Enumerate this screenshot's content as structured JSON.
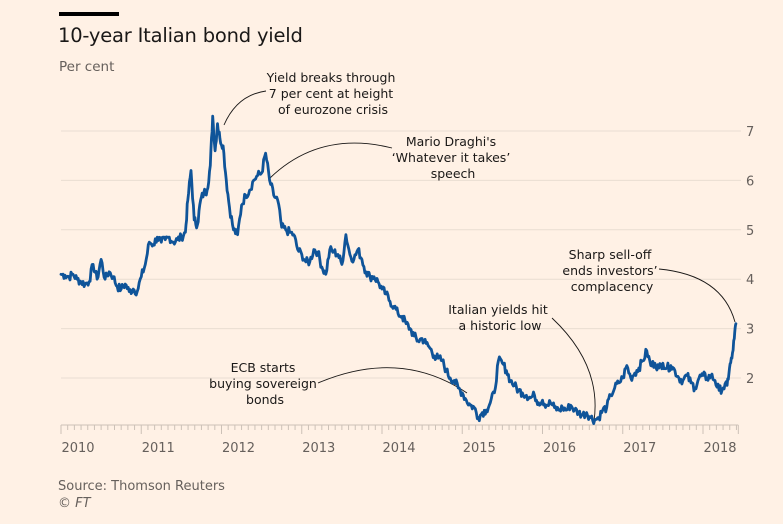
{
  "header": {
    "title": "10-year Italian bond yield",
    "subtitle": "Per cent"
  },
  "footer": {
    "source": "Source: Thomson Reuters",
    "copyright": "© FT"
  },
  "colors": {
    "background": "#fff1e5",
    "series": "#0f5499",
    "grid": "#e9ddd2",
    "text": "#66605c"
  },
  "chart_data": {
    "type": "line",
    "title": "10-year Italian bond yield",
    "subtitle": "Per cent",
    "xlabel": "",
    "ylabel": "Per cent",
    "xlim": [
      2009.95,
      2018.44
    ],
    "ylim": [
      1.05,
      7.9
    ],
    "grid": true,
    "y_axis_side": "right",
    "yticks": [
      2,
      3,
      4,
      5,
      6,
      7
    ],
    "xticks": [
      2010,
      2011,
      2012,
      2013,
      2014,
      2015,
      2016,
      2017,
      2018
    ],
    "xtick_labels": [
      "2010",
      "2011",
      "2012",
      "2013",
      "2014",
      "2015",
      "2016",
      "2017",
      "2018"
    ],
    "series": [
      {
        "name": "10-year Italian bond yield",
        "x": [
          2010.0,
          2010.05,
          2010.1,
          2010.15,
          2010.2,
          2010.25,
          2010.3,
          2010.35,
          2010.4,
          2010.45,
          2010.5,
          2010.55,
          2010.6,
          2010.65,
          2010.7,
          2010.75,
          2010.8,
          2010.85,
          2010.9,
          2010.95,
          2011.0,
          2011.05,
          2011.1,
          2011.15,
          2011.2,
          2011.25,
          2011.3,
          2011.35,
          2011.4,
          2011.45,
          2011.5,
          2011.55,
          2011.58,
          2011.62,
          2011.66,
          2011.7,
          2011.74,
          2011.78,
          2011.82,
          2011.86,
          2011.89,
          2011.92,
          2011.95,
          2011.98,
          2012.02,
          2012.06,
          2012.1,
          2012.15,
          2012.2,
          2012.25,
          2012.3,
          2012.35,
          2012.4,
          2012.45,
          2012.5,
          2012.55,
          2012.6,
          2012.65,
          2012.7,
          2012.75,
          2012.8,
          2012.85,
          2012.9,
          2012.95,
          2013.0,
          2013.05,
          2013.1,
          2013.15,
          2013.2,
          2013.25,
          2013.3,
          2013.35,
          2013.4,
          2013.45,
          2013.5,
          2013.55,
          2013.6,
          2013.65,
          2013.7,
          2013.75,
          2013.8,
          2013.85,
          2013.9,
          2013.95,
          2014.0,
          2014.05,
          2014.1,
          2014.15,
          2014.2,
          2014.25,
          2014.3,
          2014.35,
          2014.4,
          2014.45,
          2014.5,
          2014.55,
          2014.6,
          2014.65,
          2014.7,
          2014.75,
          2014.8,
          2014.85,
          2014.9,
          2014.95,
          2015.0,
          2015.05,
          2015.1,
          2015.15,
          2015.2,
          2015.25,
          2015.3,
          2015.35,
          2015.4,
          2015.45,
          2015.5,
          2015.55,
          2015.6,
          2015.65,
          2015.7,
          2015.75,
          2015.8,
          2015.85,
          2015.9,
          2015.95,
          2016.0,
          2016.05,
          2016.1,
          2016.15,
          2016.2,
          2016.25,
          2016.3,
          2016.35,
          2016.4,
          2016.45,
          2016.5,
          2016.55,
          2016.6,
          2016.65,
          2016.7,
          2016.75,
          2016.8,
          2016.85,
          2016.9,
          2016.95,
          2017.0,
          2017.05,
          2017.1,
          2017.15,
          2017.2,
          2017.25,
          2017.3,
          2017.35,
          2017.4,
          2017.45,
          2017.5,
          2017.55,
          2017.6,
          2017.65,
          2017.7,
          2017.75,
          2017.8,
          2017.85,
          2017.9,
          2017.95,
          2018.0,
          2018.05,
          2018.1,
          2018.15,
          2018.2,
          2018.25,
          2018.3,
          2018.33,
          2018.36,
          2018.39,
          2018.41
        ],
        "values": [
          4.1,
          4.08,
          4.05,
          4.1,
          4.0,
          3.95,
          3.9,
          3.95,
          4.3,
          4.0,
          4.4,
          4.0,
          4.15,
          4.05,
          3.85,
          3.8,
          3.9,
          3.75,
          3.8,
          3.75,
          4.05,
          4.3,
          4.75,
          4.7,
          4.85,
          4.75,
          4.8,
          4.85,
          4.75,
          4.8,
          4.85,
          4.95,
          5.6,
          6.2,
          5.2,
          5.1,
          5.6,
          5.75,
          5.8,
          6.3,
          7.3,
          6.6,
          7.15,
          6.85,
          6.7,
          6.0,
          5.45,
          5.0,
          4.9,
          5.5,
          5.7,
          5.8,
          6.0,
          6.1,
          6.15,
          6.55,
          6.0,
          5.7,
          5.6,
          5.05,
          5.0,
          4.95,
          4.9,
          4.6,
          4.5,
          4.35,
          4.35,
          4.6,
          4.55,
          4.25,
          4.1,
          4.6,
          4.55,
          4.5,
          4.3,
          4.9,
          4.5,
          4.4,
          4.6,
          4.4,
          4.15,
          4.05,
          4.05,
          3.95,
          3.8,
          3.7,
          3.55,
          3.45,
          3.3,
          3.25,
          3.1,
          3.0,
          2.85,
          2.75,
          2.8,
          2.7,
          2.6,
          2.45,
          2.4,
          2.35,
          2.15,
          2.0,
          1.95,
          1.8,
          1.7,
          1.55,
          1.45,
          1.4,
          1.2,
          1.3,
          1.35,
          1.5,
          1.7,
          2.35,
          2.3,
          2.15,
          1.95,
          1.85,
          1.75,
          1.7,
          1.65,
          1.6,
          1.65,
          1.5,
          1.55,
          1.45,
          1.5,
          1.4,
          1.35,
          1.4,
          1.35,
          1.45,
          1.35,
          1.3,
          1.25,
          1.3,
          1.2,
          1.15,
          1.2,
          1.35,
          1.4,
          1.65,
          1.8,
          1.9,
          2.0,
          2.25,
          2.0,
          2.1,
          2.2,
          2.35,
          2.55,
          2.25,
          2.3,
          2.2,
          2.3,
          2.2,
          2.25,
          2.15,
          2.0,
          1.95,
          2.05,
          1.9,
          1.8,
          2.0,
          2.05,
          2.0,
          2.05,
          1.95,
          1.75,
          1.8,
          1.85,
          2.2,
          2.4,
          2.8,
          3.1
        ]
      }
    ],
    "annotations": [
      {
        "text": [
          "Yield breaks through",
          "7 per cent at height",
          "of eurozone crisis"
        ],
        "x": 2011.95,
        "y": 7.0
      },
      {
        "text": [
          "Mario Draghi's",
          "‘Whatever it takes’",
          "speech"
        ],
        "x": 2012.55,
        "y": 6.0
      },
      {
        "text": [
          "ECB starts",
          "buying sovereign",
          "bonds"
        ],
        "x": 2015.0,
        "y": 1.65
      },
      {
        "text": [
          "Italian yields hit",
          "a historic low"
        ],
        "x": 2016.65,
        "y": 1.15
      },
      {
        "text": [
          "Sharp sell-off",
          "ends investors’",
          "complacency"
        ],
        "x": 2018.41,
        "y": 3.1
      }
    ]
  }
}
